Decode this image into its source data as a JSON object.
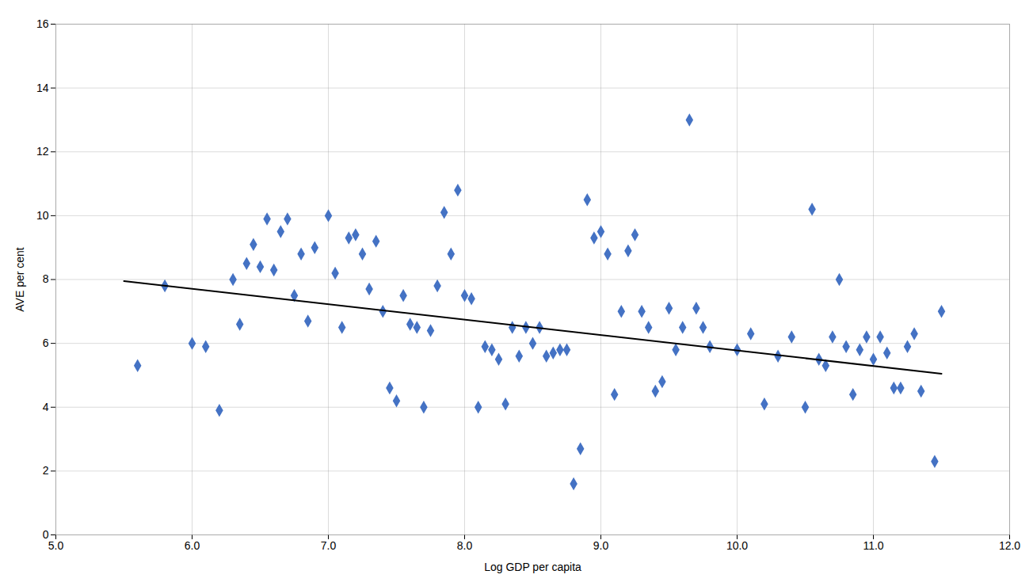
{
  "chart_data": {
    "type": "scatter",
    "xlabel": "Log GDP per capita",
    "ylabel": "AVE per cent",
    "xlim": [
      5,
      12
    ],
    "ylim": [
      0,
      16
    ],
    "xticks": [
      5,
      6,
      7,
      8,
      9,
      10,
      11,
      12
    ],
    "yticks": [
      0,
      2,
      4,
      6,
      8,
      10,
      12,
      14,
      16
    ],
    "grid": true,
    "series": [
      {
        "type": "scatter",
        "color": "#4472C4",
        "marker": "diamond",
        "x": [
          5.6,
          5.8,
          6.0,
          6.1,
          6.2,
          6.3,
          6.35,
          6.4,
          6.45,
          6.5,
          6.55,
          6.6,
          6.65,
          6.7,
          6.75,
          6.8,
          6.85,
          6.9,
          7.0,
          7.05,
          7.1,
          7.15,
          7.2,
          7.25,
          7.3,
          7.35,
          7.4,
          7.45,
          7.5,
          7.55,
          7.6,
          7.65,
          7.7,
          7.75,
          7.8,
          7.85,
          7.9,
          7.95,
          8.0,
          8.05,
          8.1,
          8.15,
          8.2,
          8.25,
          8.3,
          8.35,
          8.4,
          8.45,
          8.5,
          8.55,
          8.6,
          8.65,
          8.7,
          8.75,
          8.8,
          8.85,
          8.9,
          8.95,
          9.0,
          9.05,
          9.1,
          9.15,
          9.2,
          9.25,
          9.3,
          9.35,
          9.4,
          9.45,
          9.5,
          9.55,
          9.6,
          9.65,
          9.7,
          9.75,
          9.8,
          10.0,
          10.1,
          10.2,
          10.3,
          10.4,
          10.5,
          10.55,
          10.6,
          10.65,
          10.7,
          10.75,
          10.8,
          10.85,
          10.9,
          10.95,
          11.0,
          11.05,
          11.1,
          11.15,
          11.2,
          11.25,
          11.3,
          11.35,
          11.45,
          11.5
        ],
        "values": [
          5.3,
          7.8,
          6.0,
          5.9,
          3.9,
          8.0,
          6.6,
          8.5,
          9.1,
          8.4,
          9.9,
          8.3,
          9.5,
          9.9,
          7.5,
          8.8,
          6.7,
          9.0,
          10.0,
          8.2,
          6.5,
          9.3,
          9.4,
          8.8,
          7.7,
          9.2,
          7.0,
          4.6,
          4.2,
          7.5,
          6.6,
          6.5,
          4.0,
          6.4,
          7.8,
          10.1,
          8.8,
          10.8,
          7.5,
          7.4,
          4.0,
          5.9,
          5.8,
          5.5,
          4.1,
          6.5,
          5.6,
          6.5,
          6.0,
          6.5,
          5.6,
          5.7,
          5.8,
          5.8,
          1.6,
          2.7,
          10.5,
          9.3,
          9.5,
          8.8,
          4.4,
          7.0,
          8.9,
          9.4,
          7.0,
          6.5,
          4.5,
          4.8,
          7.1,
          5.8,
          6.5,
          13.0,
          7.1,
          6.5,
          5.9,
          5.8,
          6.3,
          4.1,
          5.6,
          6.2,
          4.0,
          10.2,
          5.5,
          5.3,
          6.2,
          8.0,
          5.9,
          4.4,
          5.8,
          6.2,
          5.5,
          6.2,
          5.7,
          4.6,
          4.6,
          5.9,
          6.3,
          4.5,
          2.3,
          7.0
        ]
      },
      {
        "type": "line",
        "color": "#000000",
        "x": [
          5.5,
          11.5
        ],
        "values": [
          7.95,
          5.05
        ]
      }
    ]
  }
}
